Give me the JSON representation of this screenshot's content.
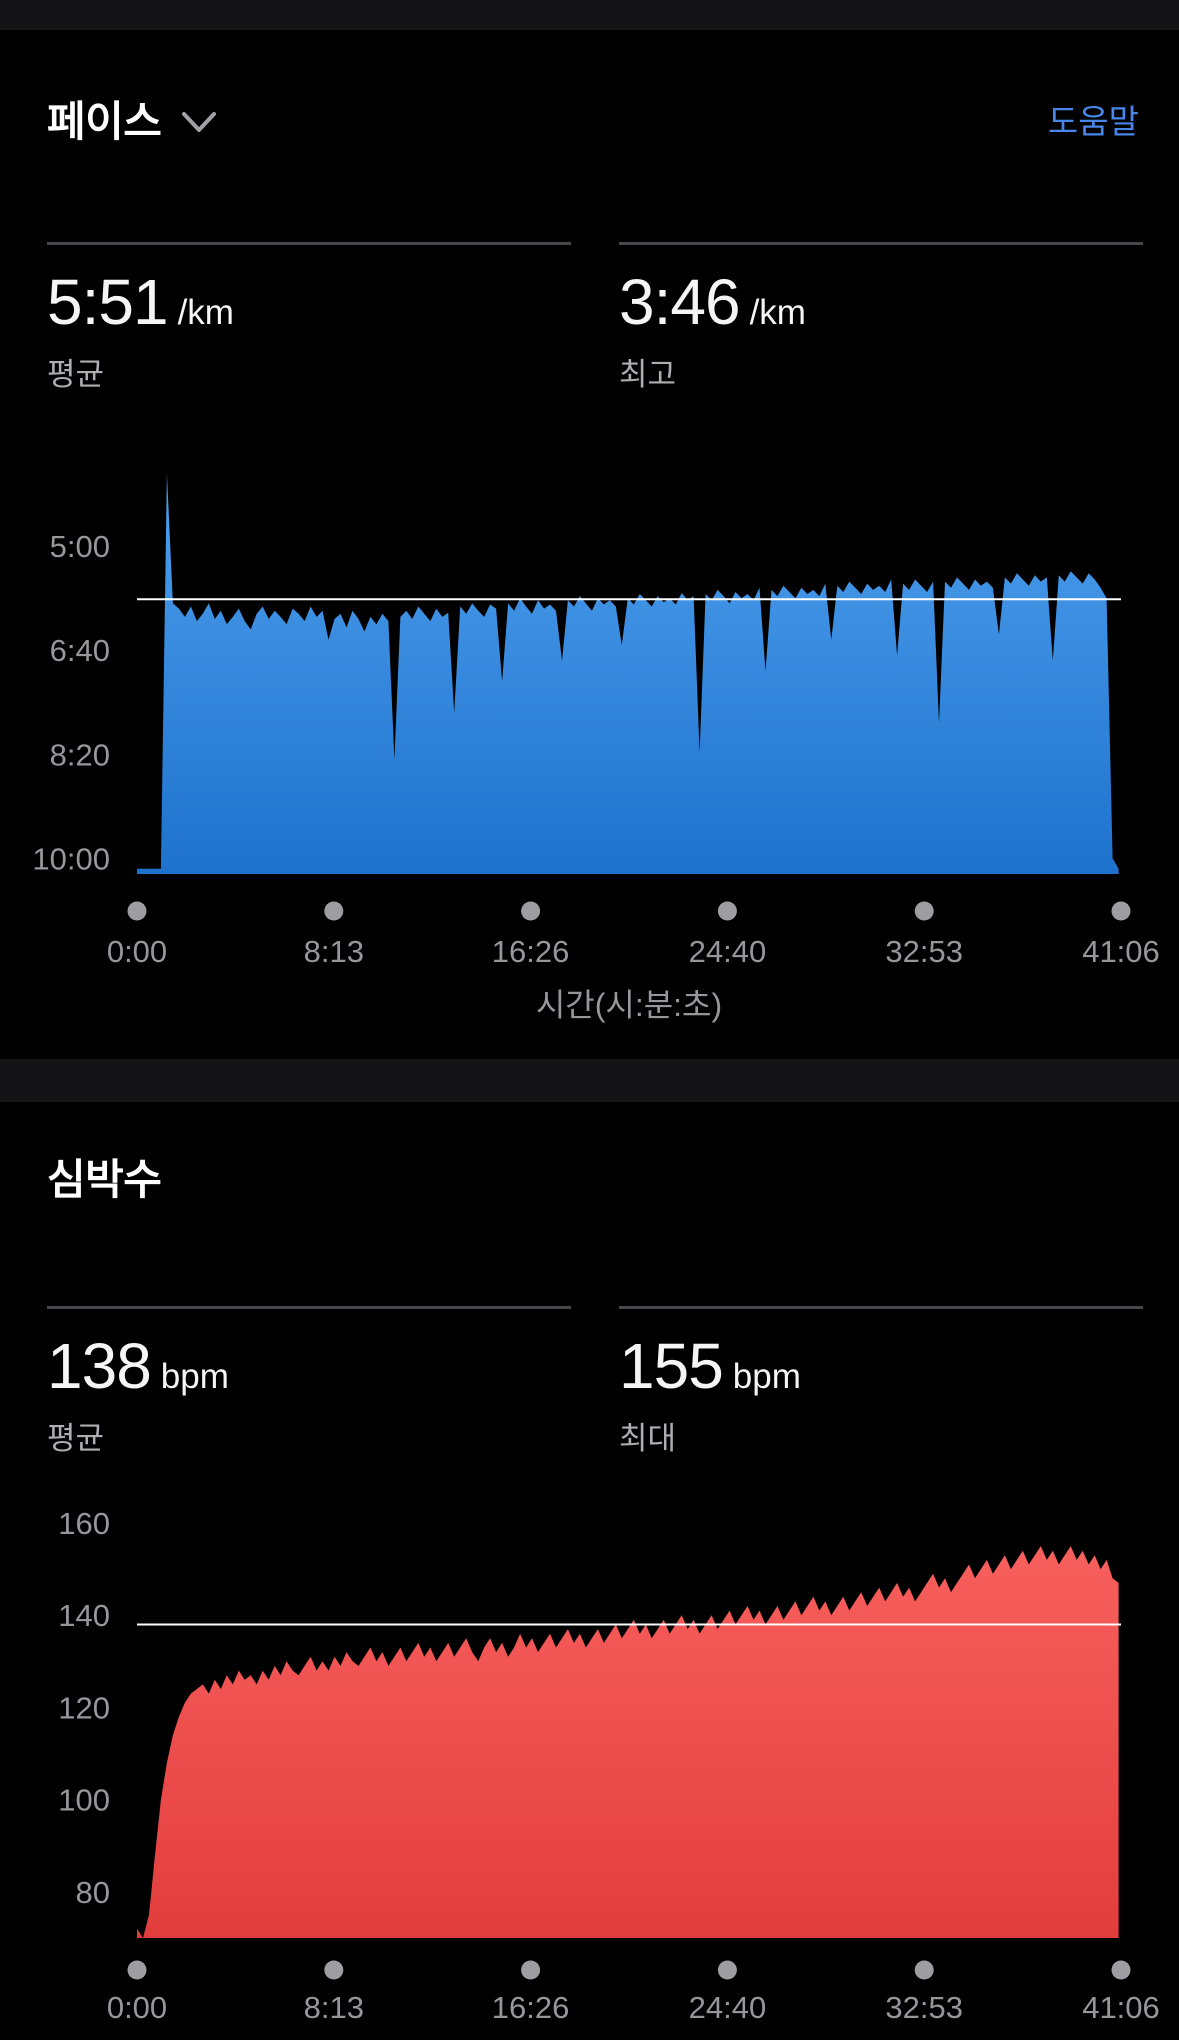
{
  "pace_section": {
    "title": "페이스",
    "help_label": "도움말",
    "stats": [
      {
        "value": "5:51",
        "unit": "/km",
        "label": "평균"
      },
      {
        "value": "3:46",
        "unit": "/km",
        "label": "최고"
      }
    ]
  },
  "heart_rate_section": {
    "title": "심박수",
    "stats": [
      {
        "value": "138",
        "unit": "bpm",
        "label": "평균"
      },
      {
        "value": "155",
        "unit": "bpm",
        "label": "최대"
      }
    ]
  },
  "colors": {
    "accent_link_blue": "#4986e9",
    "pace_fill_top": "#4fa0ee",
    "pace_fill_bottom": "#1d72cd",
    "hr_fill_top": "#f9625f",
    "hr_fill_bottom": "#e23d3d",
    "axis_text_gray": "#97979b",
    "avg_line": "#ffffff",
    "tick_dot_gray": "#9e9ea2"
  },
  "chart_data": [
    {
      "type": "area",
      "name": "pace",
      "title": "페이스",
      "unit": "min:sec per km (stored as seconds per km, lower = faster, axis inverted)",
      "xlabel": "시간(시:분:초)",
      "x_ticks": {
        "values": [
          0,
          493.2,
          986.4,
          1479.6,
          1972.8,
          2466
        ],
        "labels": [
          "0:00",
          "8:13",
          "16:26",
          "24:40",
          "32:53",
          "41:06"
        ]
      },
      "y_ticks": {
        "values": [
          300,
          400,
          500,
          600
        ],
        "labels": [
          "5:00",
          "6:40",
          "8:20",
          "10:00"
        ]
      },
      "ylim": [
        222,
        615
      ],
      "x_total_seconds": 2466,
      "x_step_seconds": 15,
      "average": {
        "value": 351,
        "label": "5:51 /km"
      },
      "best": {
        "value": 226,
        "label": "3:46 /km"
      },
      "values": [
        610,
        610,
        610,
        610,
        610,
        230,
        355,
        360,
        368,
        358,
        372,
        365,
        355,
        370,
        362,
        375,
        368,
        360,
        372,
        380,
        365,
        358,
        370,
        362,
        368,
        375,
        360,
        365,
        372,
        358,
        368,
        362,
        390,
        370,
        365,
        378,
        362,
        370,
        382,
        368,
        375,
        365,
        372,
        505,
        368,
        362,
        370,
        358,
        365,
        372,
        360,
        368,
        364,
        460,
        358,
        365,
        355,
        362,
        368,
        356,
        360,
        430,
        355,
        362,
        350,
        358,
        365,
        352,
        360,
        356,
        362,
        410,
        352,
        358,
        348,
        355,
        362,
        350,
        356,
        352,
        358,
        395,
        350,
        356,
        346,
        352,
        358,
        348,
        354,
        350,
        356,
        345,
        352,
        348,
        498,
        346,
        352,
        342,
        348,
        355,
        344,
        350,
        346,
        352,
        340,
        420,
        342,
        348,
        338,
        344,
        350,
        340,
        346,
        342,
        348,
        336,
        390,
        338,
        344,
        334,
        340,
        346,
        336,
        342,
        338,
        344,
        332,
        405,
        336,
        342,
        332,
        338,
        344,
        334,
        470,
        334,
        340,
        330,
        336,
        342,
        332,
        338,
        334,
        340,
        385,
        330,
        336,
        326,
        332,
        338,
        328,
        334,
        330,
        410,
        328,
        334,
        324,
        330,
        336,
        326,
        332,
        340,
        350,
        600,
        610
      ]
    },
    {
      "type": "area",
      "name": "heart_rate",
      "title": "심박수",
      "unit": "bpm",
      "xlabel": "",
      "x_ticks": {
        "values": [
          0,
          493.2,
          986.4,
          1479.6,
          1972.8,
          2466
        ],
        "labels": [
          "0:00",
          "8:13",
          "16:26",
          "24:40",
          "32:53",
          "41:06"
        ]
      },
      "y_ticks": {
        "values": [
          160,
          140,
          120,
          100,
          80
        ],
        "labels": [
          "160",
          "140",
          "120",
          "100",
          "80"
        ]
      },
      "ylim": [
        160,
        70
      ],
      "x_total_seconds": 2466,
      "x_step_seconds": 15,
      "average": {
        "value": 138,
        "label": "138 bpm"
      },
      "max": {
        "value": 155,
        "label": "155 bpm"
      },
      "values": [
        72,
        69,
        75,
        88,
        100,
        108,
        114,
        118,
        121,
        123,
        124,
        125,
        123,
        126,
        124,
        127,
        125,
        128,
        126,
        127,
        125,
        128,
        126,
        129,
        127,
        130,
        128,
        127,
        129,
        131,
        128,
        130,
        128,
        131,
        129,
        132,
        130,
        129,
        131,
        133,
        130,
        132,
        129,
        131,
        133,
        130,
        132,
        134,
        131,
        133,
        130,
        132,
        134,
        131,
        133,
        135,
        132,
        130,
        133,
        135,
        132,
        134,
        131,
        133,
        136,
        133,
        135,
        132,
        134,
        136,
        133,
        135,
        137,
        134,
        136,
        133,
        135,
        137,
        134,
        136,
        138,
        135,
        137,
        139,
        136,
        138,
        135,
        137,
        139,
        136,
        138,
        140,
        137,
        139,
        136,
        138,
        140,
        137,
        139,
        141,
        138,
        140,
        142,
        139,
        141,
        138,
        140,
        142,
        139,
        141,
        143,
        140,
        142,
        144,
        141,
        143,
        140,
        142,
        144,
        141,
        143,
        145,
        142,
        144,
        146,
        143,
        145,
        147,
        144,
        146,
        143,
        145,
        147,
        149,
        146,
        148,
        145,
        147,
        149,
        151,
        148,
        150,
        152,
        149,
        151,
        153,
        150,
        152,
        154,
        151,
        153,
        155,
        152,
        154,
        151,
        153,
        155,
        152,
        154,
        151,
        153,
        150,
        152,
        148,
        147
      ]
    }
  ]
}
